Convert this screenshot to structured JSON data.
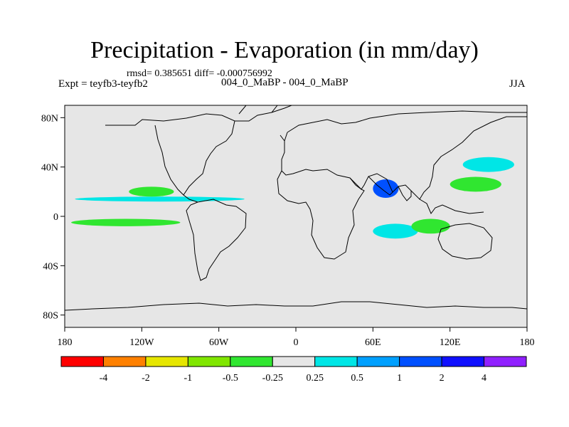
{
  "title": "Precipitation - Evaporation (in mm/day)",
  "stats": "rmsd= 0.385651 diff= -0.000756992",
  "expt": "Expt = teyfb3-teyfb2",
  "subtitle": "004_0_MaBP - 004_0_MaBP",
  "season": "JJA",
  "colors": {
    "background": "#e6e6e6",
    "coast": "#000000",
    "levels": [
      "#ff0000",
      "#ff8000",
      "#e6e600",
      "#80e600",
      "#30e630",
      "#e6e6e6",
      "#00e6e6",
      "#00a0ff",
      "#0050ff",
      "#1010ff",
      "#9020ff"
    ]
  },
  "lat_axis": {
    "labels": [
      "80N",
      "40N",
      "0",
      "40S",
      "80S"
    ]
  },
  "lon_axis": {
    "labels": [
      "180",
      "120W",
      "60W",
      "0",
      "60E",
      "120E",
      "180"
    ]
  },
  "colorbar": {
    "labels": [
      "-4",
      "-2",
      "-1",
      "-0.5",
      "-0.25",
      "0.25",
      "0.5",
      "1",
      "2",
      "4"
    ]
  },
  "map_features": [
    {
      "type": "band",
      "color": "#00e6e6",
      "lon": [
        -172,
        -40
      ],
      "lat": [
        12,
        16
      ]
    },
    {
      "type": "patch",
      "color": "#30e630",
      "lon": [
        -130,
        -95
      ],
      "lat": [
        16,
        24
      ]
    },
    {
      "type": "patch",
      "color": "#30e630",
      "lon": [
        -175,
        -90
      ],
      "lat": [
        -8,
        -2
      ]
    },
    {
      "type": "patch",
      "color": "#00e6e6",
      "lon": [
        60,
        95
      ],
      "lat": [
        -18,
        -6
      ]
    },
    {
      "type": "patch",
      "color": "#30e630",
      "lon": [
        90,
        120
      ],
      "lat": [
        -14,
        -2
      ]
    },
    {
      "type": "patch",
      "color": "#0050ff",
      "lon": [
        60,
        80
      ],
      "lat": [
        15,
        30
      ]
    },
    {
      "type": "patch",
      "color": "#30e630",
      "lon": [
        120,
        160
      ],
      "lat": [
        20,
        32
      ]
    },
    {
      "type": "patch",
      "color": "#00e6e6",
      "lon": [
        130,
        170
      ],
      "lat": [
        36,
        48
      ]
    }
  ]
}
